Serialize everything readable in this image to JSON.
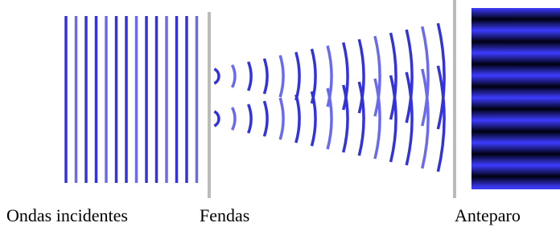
{
  "labels": {
    "incident": "Ondas incidentes",
    "slits": "Fendas",
    "screen": "Anteparo"
  }
}
